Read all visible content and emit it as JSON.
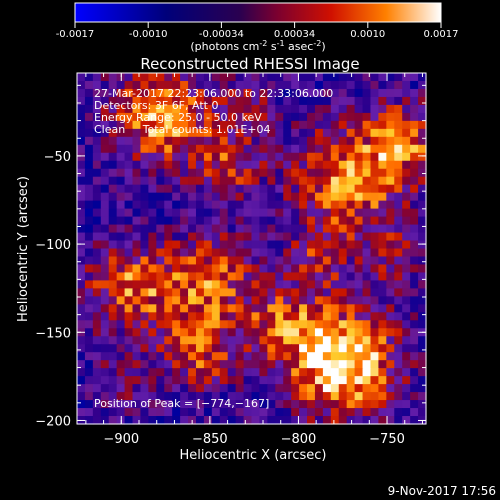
{
  "chart_data": {
    "type": "heatmap",
    "title": "Reconstructed RHESSI Image",
    "colorbar": {
      "ticks": [
        "-0.0017",
        "-0.0010",
        "-0.00034",
        "0.00034",
        "0.0010",
        "0.0017"
      ],
      "unit_parts": [
        "(photons cm",
        "-2",
        " s",
        "-1",
        " asec",
        "-2",
        ")"
      ]
    },
    "xlabel": "Heliocentric X (arcsec)",
    "ylabel": "Heliocentric Y (arcsec)",
    "xlim": [
      -925,
      -728
    ],
    "ylim": [
      -202,
      -3
    ],
    "x_ticks": [
      {
        "value": -900,
        "label": "−900"
      },
      {
        "value": -850,
        "label": "−850"
      },
      {
        "value": -800,
        "label": "−800"
      },
      {
        "value": -750,
        "label": "−750"
      }
    ],
    "y_ticks": [
      {
        "value": -50,
        "label": "−50"
      },
      {
        "value": -100,
        "label": "−100"
      },
      {
        "value": -150,
        "label": "−150"
      },
      {
        "value": -200,
        "label": "−200"
      }
    ],
    "info_lines": [
      "27-Mar-2017 22:23:06.000 to 22:33:06.000",
      "Detectors: 3F 6F, Att 0",
      "Energy Range: 25.0 - 50.0 keV",
      "Clean     Total counts: 1.01E+04"
    ],
    "peak_text": "Position of Peak = [−774,−167]",
    "sources": [
      {
        "x": -775,
        "y": -167,
        "amplitude": 1.0,
        "sigma": 22
      },
      {
        "x": -878,
        "y": -28,
        "amplitude": 0.75,
        "sigma": 20
      },
      {
        "x": -840,
        "y": -55,
        "amplitude": 0.45,
        "sigma": 14
      },
      {
        "x": -770,
        "y": -65,
        "amplitude": 0.7,
        "sigma": 24
      },
      {
        "x": -740,
        "y": -40,
        "amplitude": 0.55,
        "sigma": 14
      },
      {
        "x": -895,
        "y": -125,
        "amplitude": 0.65,
        "sigma": 18
      },
      {
        "x": -850,
        "y": -120,
        "amplitude": 0.6,
        "sigma": 18
      },
      {
        "x": -855,
        "y": -160,
        "amplitude": 0.55,
        "sigma": 16
      },
      {
        "x": -810,
        "y": -145,
        "amplitude": 0.5,
        "sigma": 14
      },
      {
        "x": -790,
        "y": -110,
        "amplitude": 0.35,
        "sigma": 12
      },
      {
        "x": -745,
        "y": -110,
        "amplitude": 0.3,
        "sigma": 12
      },
      {
        "x": -900,
        "y": -180,
        "amplitude": 0.3,
        "sigma": 12
      },
      {
        "x": -830,
        "y": -20,
        "amplitude": 0.35,
        "sigma": 12
      }
    ],
    "background": -0.35,
    "noise": 0.35,
    "grid_cells": 44
  },
  "footer": {
    "date": "9-Nov-2017 17:56"
  }
}
